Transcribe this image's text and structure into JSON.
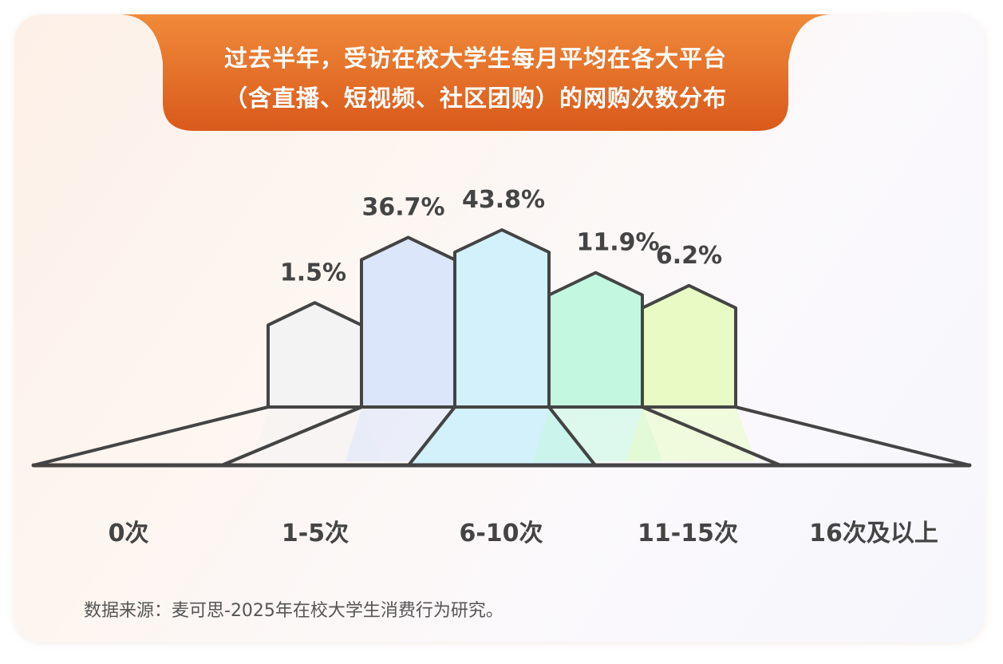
{
  "header": {
    "title_line1": "过去半年，受访在校大学生每月平均在各大平台",
    "title_line2": "（含直播、短视频、社区团购）的网购次数分布"
  },
  "colors": {
    "banner_start": "#f08a3a",
    "banner_end": "#d95a1c",
    "outline": "#444444",
    "label": "#444444"
  },
  "chart_data": {
    "type": "bar",
    "title": "过去半年，受访在校大学生每月平均在各大平台（含直播、短视频、社区团购）的网购次数分布",
    "categories": [
      "0次",
      "1-5次",
      "6-10次",
      "11-15次",
      "16次及以上"
    ],
    "values": [
      1.5,
      36.7,
      43.8,
      11.9,
      6.2
    ],
    "value_labels": [
      "1.5%",
      "36.7%",
      "43.8%",
      "11.9%",
      "6.2%"
    ],
    "fill_colors": [
      "#f3f3f3",
      "#dbe6fb",
      "#d2f1fb",
      "#c4f7e0",
      "#e8fbc4"
    ],
    "xlabel": "",
    "ylabel": "",
    "grid": false,
    "legend": "none"
  },
  "footer": {
    "source": "数据来源：麦可思-2025年在校大学生消费行为研究。"
  }
}
